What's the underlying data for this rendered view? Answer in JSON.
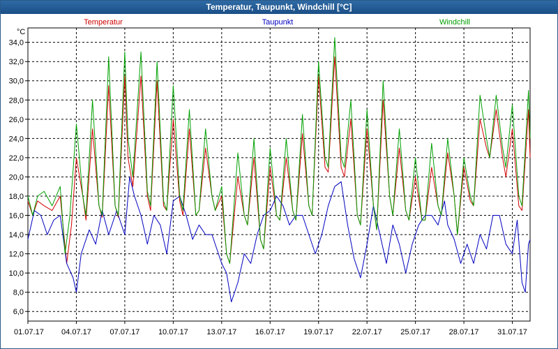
{
  "window": {
    "title": "Temperatur, Taupunkt, Windchill [°C]"
  },
  "chart_data": {
    "type": "line",
    "title": "Temperatur, Taupunkt, Windchill [°C]",
    "ylabel": "°C",
    "xlabel": "",
    "ylim": [
      5,
      35.5
    ],
    "yticks": [
      "6,0",
      "8,0",
      "10,0",
      "12,0",
      "14,0",
      "16,0",
      "18,0",
      "20,0",
      "22,0",
      "24,0",
      "26,0",
      "28,0",
      "30,0",
      "32,0",
      "34,0"
    ],
    "xticks": [
      "01.07.17",
      "04.07.17",
      "07.07.17",
      "10.07.17",
      "13.07.17",
      "16.07.17",
      "19.07.17",
      "22.07.17",
      "25.07.17",
      "28.07.17",
      "31.07.17"
    ],
    "x_day_range": [
      1,
      32.1
    ],
    "grid": true,
    "legend_position": "top",
    "series": [
      {
        "name": "Temperatur",
        "color": "#d00000",
        "points": [
          [
            1,
            17.5
          ],
          [
            1.3,
            16
          ],
          [
            1.6,
            17.5
          ],
          [
            2,
            17
          ],
          [
            2.5,
            16.5
          ],
          [
            3,
            18
          ],
          [
            3.4,
            11
          ],
          [
            3.7,
            15
          ],
          [
            4,
            22
          ],
          [
            4.4,
            18
          ],
          [
            4.6,
            15.5
          ],
          [
            5,
            25
          ],
          [
            5.4,
            17
          ],
          [
            5.6,
            15.8
          ],
          [
            6,
            29.5
          ],
          [
            6.4,
            17
          ],
          [
            6.6,
            15.8
          ],
          [
            7,
            30.5
          ],
          [
            7.2,
            22
          ],
          [
            7.5,
            19
          ],
          [
            8,
            30.5
          ],
          [
            8.4,
            18
          ],
          [
            8.6,
            16.5
          ],
          [
            9,
            30
          ],
          [
            9.4,
            17
          ],
          [
            9.6,
            16.5
          ],
          [
            10,
            26
          ],
          [
            10.4,
            17.5
          ],
          [
            10.6,
            16
          ],
          [
            11,
            25
          ],
          [
            11.4,
            16
          ],
          [
            11.6,
            16.5
          ],
          [
            12,
            23
          ],
          [
            12.4,
            18
          ],
          [
            12.6,
            16.5
          ],
          [
            13,
            18
          ],
          [
            13.3,
            12
          ],
          [
            13.5,
            11
          ],
          [
            14,
            20
          ],
          [
            14.4,
            16
          ],
          [
            14.6,
            15
          ],
          [
            15,
            22
          ],
          [
            15.4,
            13.5
          ],
          [
            15.6,
            12.5
          ],
          [
            16,
            21
          ],
          [
            16.4,
            16
          ],
          [
            16.6,
            15.5
          ],
          [
            17,
            22
          ],
          [
            17.4,
            16.5
          ],
          [
            17.6,
            15.5
          ],
          [
            18,
            24.5
          ],
          [
            18.4,
            17
          ],
          [
            18.6,
            16
          ],
          [
            19,
            30.5
          ],
          [
            19.4,
            21
          ],
          [
            19.6,
            20.5
          ],
          [
            20,
            32.5
          ],
          [
            20.4,
            21
          ],
          [
            20.6,
            20
          ],
          [
            21,
            26
          ],
          [
            21.4,
            16
          ],
          [
            21.6,
            15
          ],
          [
            22,
            25
          ],
          [
            22.4,
            17
          ],
          [
            22.6,
            14.5
          ],
          [
            23,
            28
          ],
          [
            23.4,
            18
          ],
          [
            23.6,
            16
          ],
          [
            24,
            23
          ],
          [
            24.4,
            16.5
          ],
          [
            24.6,
            15.5
          ],
          [
            25,
            20
          ],
          [
            25.4,
            15.5
          ],
          [
            25.6,
            15.5
          ],
          [
            26,
            21
          ],
          [
            26.4,
            17
          ],
          [
            26.6,
            16
          ],
          [
            27,
            22.5
          ],
          [
            27.4,
            18
          ],
          [
            27.6,
            14
          ],
          [
            28,
            21
          ],
          [
            28.4,
            17.5
          ],
          [
            28.6,
            17
          ],
          [
            29,
            26
          ],
          [
            29.4,
            23
          ],
          [
            29.6,
            22
          ],
          [
            30,
            27
          ],
          [
            30.4,
            22
          ],
          [
            30.6,
            20
          ],
          [
            31,
            25
          ],
          [
            31.4,
            17
          ],
          [
            31.6,
            16.5
          ],
          [
            32,
            27
          ],
          [
            32.1,
            22
          ]
        ]
      },
      {
        "name": "Taupunkt",
        "color": "#0000c0",
        "points": [
          [
            1,
            13.5
          ],
          [
            1.4,
            16.5
          ],
          [
            1.8,
            16
          ],
          [
            2.2,
            14
          ],
          [
            2.6,
            15.5
          ],
          [
            3,
            16
          ],
          [
            3.4,
            11
          ],
          [
            3.8,
            9.5
          ],
          [
            4,
            8
          ],
          [
            4.3,
            12
          ],
          [
            4.8,
            14.5
          ],
          [
            5.2,
            13
          ],
          [
            5.6,
            16.5
          ],
          [
            6,
            14
          ],
          [
            6.5,
            16.5
          ],
          [
            7,
            14
          ],
          [
            7.3,
            20
          ],
          [
            7.6,
            18
          ],
          [
            8,
            16
          ],
          [
            8.4,
            13
          ],
          [
            8.8,
            16
          ],
          [
            9.2,
            15
          ],
          [
            9.6,
            12
          ],
          [
            10,
            17.5
          ],
          [
            10.4,
            18
          ],
          [
            10.8,
            16
          ],
          [
            11.2,
            13.5
          ],
          [
            11.6,
            15
          ],
          [
            12,
            14
          ],
          [
            12.4,
            14
          ],
          [
            12.8,
            12
          ],
          [
            13,
            11
          ],
          [
            13.3,
            10
          ],
          [
            13.6,
            7
          ],
          [
            14,
            9
          ],
          [
            14.4,
            12
          ],
          [
            14.8,
            11
          ],
          [
            15.2,
            14
          ],
          [
            15.6,
            16
          ],
          [
            16,
            16.5
          ],
          [
            16.4,
            18
          ],
          [
            16.8,
            17
          ],
          [
            17.2,
            15
          ],
          [
            17.6,
            16
          ],
          [
            18,
            16
          ],
          [
            18.4,
            14
          ],
          [
            18.8,
            12
          ],
          [
            19.2,
            14
          ],
          [
            19.6,
            17
          ],
          [
            20,
            19
          ],
          [
            20.4,
            19.5
          ],
          [
            20.8,
            15
          ],
          [
            21.2,
            11.5
          ],
          [
            21.6,
            9.5
          ],
          [
            22,
            13
          ],
          [
            22.4,
            17
          ],
          [
            22.8,
            14
          ],
          [
            23.2,
            11
          ],
          [
            23.6,
            15
          ],
          [
            24,
            13
          ],
          [
            24.4,
            10
          ],
          [
            24.8,
            13
          ],
          [
            25.2,
            15
          ],
          [
            25.6,
            16
          ],
          [
            26,
            16
          ],
          [
            26.4,
            15
          ],
          [
            26.8,
            17.5
          ],
          [
            27,
            15
          ],
          [
            27.4,
            13.5
          ],
          [
            27.8,
            11
          ],
          [
            28.2,
            13
          ],
          [
            28.6,
            11
          ],
          [
            29,
            14
          ],
          [
            29.4,
            12.5
          ],
          [
            29.8,
            16
          ],
          [
            30.2,
            16
          ],
          [
            30.6,
            13
          ],
          [
            31,
            12
          ],
          [
            31.3,
            15.5
          ],
          [
            31.6,
            9
          ],
          [
            31.8,
            8
          ],
          [
            32,
            13
          ],
          [
            32.1,
            13.5
          ]
        ]
      },
      {
        "name": "Windchill",
        "color": "#00a000",
        "points": [
          [
            1,
            18
          ],
          [
            1.3,
            16
          ],
          [
            1.6,
            18
          ],
          [
            2,
            18.5
          ],
          [
            2.5,
            17
          ],
          [
            3,
            19
          ],
          [
            3.3,
            12
          ],
          [
            3.6,
            16
          ],
          [
            4,
            25.5
          ],
          [
            4.4,
            18
          ],
          [
            4.6,
            16
          ],
          [
            5,
            28
          ],
          [
            5.4,
            17
          ],
          [
            5.6,
            16
          ],
          [
            6,
            32.5
          ],
          [
            6.4,
            17
          ],
          [
            6.6,
            16
          ],
          [
            7,
            33
          ],
          [
            7.2,
            24
          ],
          [
            7.5,
            20
          ],
          [
            8,
            33
          ],
          [
            8.4,
            18.5
          ],
          [
            8.6,
            17
          ],
          [
            9,
            32
          ],
          [
            9.4,
            17.5
          ],
          [
            9.6,
            16.5
          ],
          [
            10,
            29.5
          ],
          [
            10.4,
            18
          ],
          [
            10.6,
            16.5
          ],
          [
            11,
            27
          ],
          [
            11.4,
            16
          ],
          [
            11.6,
            16.5
          ],
          [
            12,
            25
          ],
          [
            12.4,
            18
          ],
          [
            12.6,
            16.5
          ],
          [
            13,
            19
          ],
          [
            13.3,
            12
          ],
          [
            13.5,
            11
          ],
          [
            14,
            22.5
          ],
          [
            14.4,
            16
          ],
          [
            14.6,
            15
          ],
          [
            15,
            24
          ],
          [
            15.4,
            13.5
          ],
          [
            15.6,
            12.5
          ],
          [
            16,
            23
          ],
          [
            16.4,
            16
          ],
          [
            16.6,
            15.5
          ],
          [
            17,
            24
          ],
          [
            17.4,
            16.5
          ],
          [
            17.6,
            15.5
          ],
          [
            18,
            26.5
          ],
          [
            18.4,
            17
          ],
          [
            18.6,
            16
          ],
          [
            19,
            32
          ],
          [
            19.4,
            22
          ],
          [
            19.6,
            21
          ],
          [
            20,
            34.5
          ],
          [
            20.4,
            22
          ],
          [
            20.6,
            21
          ],
          [
            21,
            28
          ],
          [
            21.4,
            16
          ],
          [
            21.6,
            15
          ],
          [
            22,
            27
          ],
          [
            22.4,
            17
          ],
          [
            22.6,
            14.5
          ],
          [
            23,
            30
          ],
          [
            23.4,
            18
          ],
          [
            23.6,
            16
          ],
          [
            24,
            25
          ],
          [
            24.4,
            16.5
          ],
          [
            24.6,
            15.5
          ],
          [
            25,
            22
          ],
          [
            25.4,
            15.5
          ],
          [
            25.6,
            15.5
          ],
          [
            26,
            23.5
          ],
          [
            26.4,
            17
          ],
          [
            26.6,
            16
          ],
          [
            27,
            24
          ],
          [
            27.4,
            18
          ],
          [
            27.6,
            14
          ],
          [
            28,
            22
          ],
          [
            28.4,
            18
          ],
          [
            28.6,
            17
          ],
          [
            29,
            28.5
          ],
          [
            29.4,
            24
          ],
          [
            29.6,
            22
          ],
          [
            30,
            28.5
          ],
          [
            30.4,
            23
          ],
          [
            30.6,
            21
          ],
          [
            31,
            27.5
          ],
          [
            31.4,
            18
          ],
          [
            31.6,
            17
          ],
          [
            32,
            29
          ],
          [
            32.1,
            24
          ]
        ]
      }
    ]
  }
}
